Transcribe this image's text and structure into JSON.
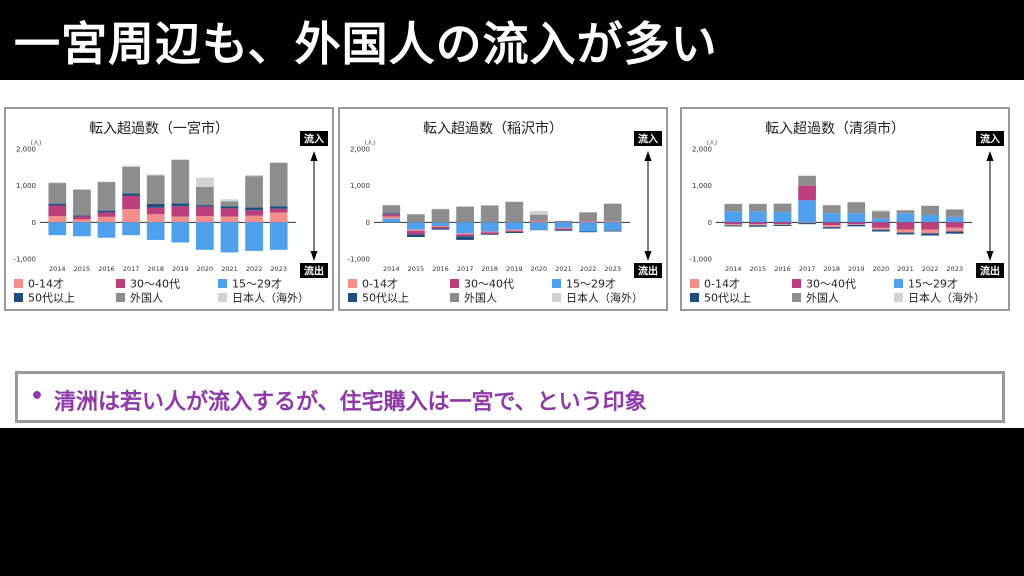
{
  "header": {
    "title": "一宮周辺も、外国人の流入が多い"
  },
  "legend": {
    "items": [
      {
        "key": "s0014",
        "label": "0-14才",
        "color": "#f08f8c"
      },
      {
        "key": "s3040",
        "label": "30〜40代",
        "color": "#bc3f7c"
      },
      {
        "key": "s1529",
        "label": "15〜29才",
        "color": "#4fa1ee"
      },
      {
        "key": "s50",
        "label": "50代以上",
        "color": "#1e4f7f"
      },
      {
        "key": "foreign",
        "label": "外国人",
        "color": "#8d8d8d"
      },
      {
        "key": "japanese_abroad",
        "label": "日本人（海外）",
        "color": "#d2d2d2"
      }
    ]
  },
  "labels": {
    "unit": "(人)",
    "inflow": "流入",
    "outflow": "流出"
  },
  "chart_data": [
    {
      "type": "bar",
      "stacked": true,
      "title": "転入超過数（一宮市）",
      "categories": [
        "2014",
        "2015",
        "2016",
        "2017",
        "2018",
        "2019",
        "2020",
        "2021",
        "2022",
        "2023"
      ],
      "ylim": [
        -1000,
        2000
      ],
      "yticks": [
        -1000,
        0,
        1000,
        2000
      ],
      "ytick_labels": [
        "-1,000",
        "0",
        "1,000",
        "2,000"
      ],
      "series": [
        {
          "key": "s0014",
          "name": "0-14才",
          "values": [
            170,
            80,
            150,
            360,
            220,
            160,
            170,
            160,
            180,
            270
          ]
        },
        {
          "key": "s3040",
          "name": "30〜40代",
          "values": [
            290,
            80,
            120,
            360,
            180,
            280,
            260,
            220,
            150,
            100
          ]
        },
        {
          "key": "s50",
          "name": "50代以上",
          "values": [
            50,
            30,
            50,
            70,
            100,
            80,
            40,
            60,
            80,
            70
          ]
        },
        {
          "key": "foreign",
          "name": "外国人",
          "values": [
            560,
            700,
            780,
            720,
            780,
            1180,
            500,
            130,
            850,
            1180
          ]
        },
        {
          "key": "japanese_abroad",
          "name": "日本人（海外）",
          "values": [
            20,
            20,
            10,
            40,
            30,
            20,
            250,
            60,
            30,
            20
          ]
        },
        {
          "key": "s1529",
          "name": "15〜29才",
          "values": [
            -350,
            -380,
            -420,
            -350,
            -480,
            -550,
            -750,
            -820,
            -780,
            -750
          ]
        }
      ]
    },
    {
      "type": "bar",
      "stacked": true,
      "title": "転入超過数（稲沢市）",
      "categories": [
        "2014",
        "2015",
        "2016",
        "2017",
        "2018",
        "2019",
        "2020",
        "2021",
        "2022",
        "2023"
      ],
      "ylim": [
        -1000,
        2000
      ],
      "yticks": [
        -1000,
        0,
        1000,
        2000
      ],
      "ytick_labels": [
        "-1,000",
        "0",
        "1,000",
        "2,000"
      ],
      "series": [
        {
          "key": "s1529",
          "name": "15〜29才",
          "values": [
            100,
            -200,
            -100,
            -300,
            -250,
            -200,
            -200,
            -150,
            -250,
            -220
          ]
        },
        {
          "key": "s0014",
          "name": "0-14才",
          "values": [
            60,
            -30,
            -20,
            -30,
            -20,
            -30,
            30,
            -20,
            20,
            20
          ]
        },
        {
          "key": "s3040",
          "name": "30〜40代",
          "values": [
            60,
            -100,
            -50,
            -50,
            -50,
            -30,
            10,
            -30,
            10,
            -10
          ]
        },
        {
          "key": "s50",
          "name": "50代以上",
          "values": [
            30,
            -70,
            -30,
            -100,
            -20,
            -30,
            -10,
            -30,
            -20,
            -20
          ]
        },
        {
          "key": "foreign",
          "name": "外国人",
          "values": [
            220,
            220,
            360,
            430,
            460,
            560,
            170,
            40,
            240,
            490
          ]
        },
        {
          "key": "japanese_abroad",
          "name": "日本人（海外）",
          "values": [
            10,
            10,
            10,
            10,
            10,
            10,
            100,
            10,
            10,
            10
          ]
        }
      ]
    },
    {
      "type": "bar",
      "stacked": true,
      "title": "転入超過数（清須市）",
      "categories": [
        "2014",
        "2015",
        "2016",
        "2017",
        "2018",
        "2019",
        "2020",
        "2021",
        "2022",
        "2023"
      ],
      "ylim": [
        -1000,
        2000
      ],
      "yticks": [
        -1000,
        0,
        1000,
        2000
      ],
      "ytick_labels": [
        "-1,000",
        "0",
        "1,000",
        "2,000"
      ],
      "series": [
        {
          "key": "s1529",
          "name": "15〜29才",
          "values": [
            300,
            300,
            280,
            600,
            250,
            250,
            100,
            250,
            200,
            150
          ]
        },
        {
          "key": "s3040",
          "name": "30〜40代",
          "values": [
            -50,
            -50,
            -50,
            400,
            -80,
            -50,
            -150,
            -200,
            -200,
            -150
          ]
        },
        {
          "key": "s0014",
          "name": "0-14才",
          "values": [
            -30,
            -30,
            -20,
            -20,
            -50,
            -20,
            -50,
            -80,
            -100,
            -100
          ]
        },
        {
          "key": "s50",
          "name": "50代以上",
          "values": [
            -30,
            -40,
            -30,
            -30,
            -40,
            -40,
            -50,
            -50,
            -60,
            -60
          ]
        },
        {
          "key": "foreign",
          "name": "外国人",
          "values": [
            200,
            200,
            230,
            270,
            220,
            300,
            200,
            80,
            250,
            200
          ]
        },
        {
          "key": "japanese_abroad",
          "name": "日本人（海外）",
          "values": [
            10,
            10,
            10,
            10,
            10,
            10,
            30,
            10,
            10,
            10
          ]
        }
      ]
    }
  ],
  "note": {
    "bullet": "•",
    "text": "清洲は若い人が流入するが、住宅購入は一宮で、という印象"
  }
}
